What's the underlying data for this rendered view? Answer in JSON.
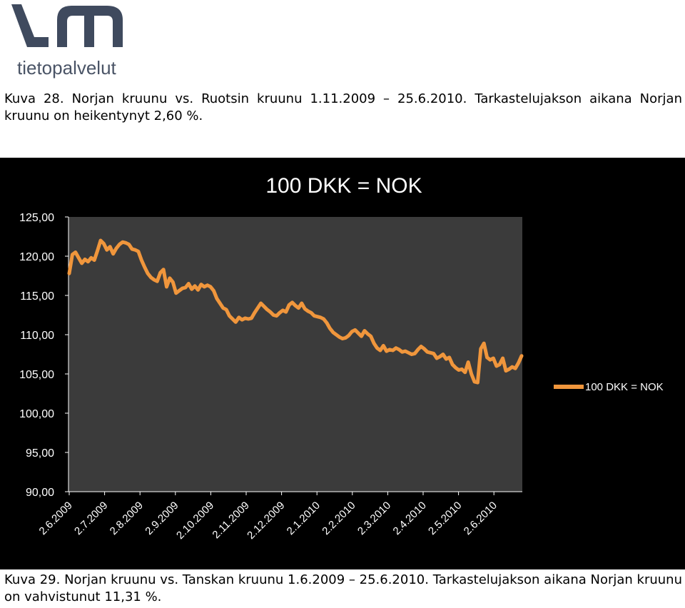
{
  "logo": {
    "text": "tietopalvelut",
    "colors": {
      "mark": "#3f4a5e",
      "text": "#4a5466"
    }
  },
  "captions": {
    "top": "Kuva 28. Norjan kruunu vs. Ruotsin kruunu 1.11.2009 – 25.6.2010. Tarkastelujakson aikana Norjan kruunu on heikentynyt 2,60 %.",
    "bottom": "Kuva 29. Norjan kruunu vs. Tanskan kruunu 1.6.2009 – 25.6.2010. Tarkastelujakson aikana Norjan kruunu on vahvistunut 11,31 %."
  },
  "chart_data": {
    "type": "line",
    "title": "100 DKK = NOK",
    "legend": {
      "position": "right",
      "entries": [
        "100 DKK = NOK"
      ]
    },
    "grid": false,
    "colors": {
      "background": "#000000",
      "plot_area": "#3b3b3b",
      "line": "#f0963c",
      "axis": "#ffffff",
      "text": "#ffffff"
    },
    "ylim": [
      90,
      125
    ],
    "y_ticks": [
      "90,00",
      "95,00",
      "100,00",
      "105,00",
      "110,00",
      "115,00",
      "120,00",
      "125,00"
    ],
    "x_ticks": [
      "2.6.2009",
      "2.7.2009",
      "2.8.2009",
      "2.9.2009",
      "2.10.2009",
      "2.11.2009",
      "2.12.2009",
      "2.1.2010",
      "2.2.2010",
      "2.3.2010",
      "2.4.2010",
      "2.5.2010",
      "2.6.2010"
    ],
    "series": [
      {
        "name": "100 DKK = NOK",
        "values": [
          117.8,
          120.2,
          120.5,
          119.8,
          119.1,
          119.6,
          119.3,
          119.8,
          119.5,
          120.7,
          122.0,
          121.6,
          120.8,
          121.2,
          120.3,
          121.0,
          121.5,
          121.8,
          121.7,
          121.5,
          120.9,
          120.8,
          120.6,
          119.5,
          118.6,
          117.8,
          117.3,
          117.0,
          116.8,
          117.9,
          118.3,
          116.1,
          117.2,
          116.7,
          115.3,
          115.6,
          115.9,
          116.0,
          116.5,
          115.8,
          116.2,
          115.7,
          116.4,
          116.1,
          116.3,
          116.1,
          115.6,
          114.6,
          114.0,
          113.4,
          113.2,
          112.4,
          112.0,
          111.6,
          112.2,
          111.9,
          112.1,
          112.0,
          112.1,
          112.8,
          113.4,
          114.0,
          113.6,
          113.2,
          112.9,
          112.5,
          112.4,
          112.8,
          113.1,
          112.9,
          113.8,
          114.1,
          113.7,
          113.4,
          114.0,
          113.3,
          113.0,
          112.8,
          112.4,
          112.3,
          112.2,
          112.0,
          111.5,
          110.8,
          110.3,
          110.0,
          109.7,
          109.5,
          109.6,
          109.9,
          110.4,
          110.6,
          110.2,
          109.8,
          110.5,
          110.1,
          109.8,
          108.9,
          108.3,
          108.0,
          108.6,
          107.9,
          108.1,
          108.0,
          108.3,
          108.1,
          107.8,
          107.9,
          107.7,
          107.5,
          107.6,
          108.1,
          108.5,
          108.2,
          107.8,
          107.7,
          107.6,
          107.0,
          107.2,
          107.5,
          106.9,
          107.1,
          106.2,
          105.8,
          105.5,
          105.6,
          105.2,
          106.5,
          105.0,
          104.0,
          103.9,
          108.2,
          108.9,
          107.1,
          106.8,
          107.0,
          106.0,
          106.2,
          107.0,
          105.4,
          105.6,
          105.9,
          105.7,
          106.4,
          107.3
        ]
      }
    ]
  }
}
